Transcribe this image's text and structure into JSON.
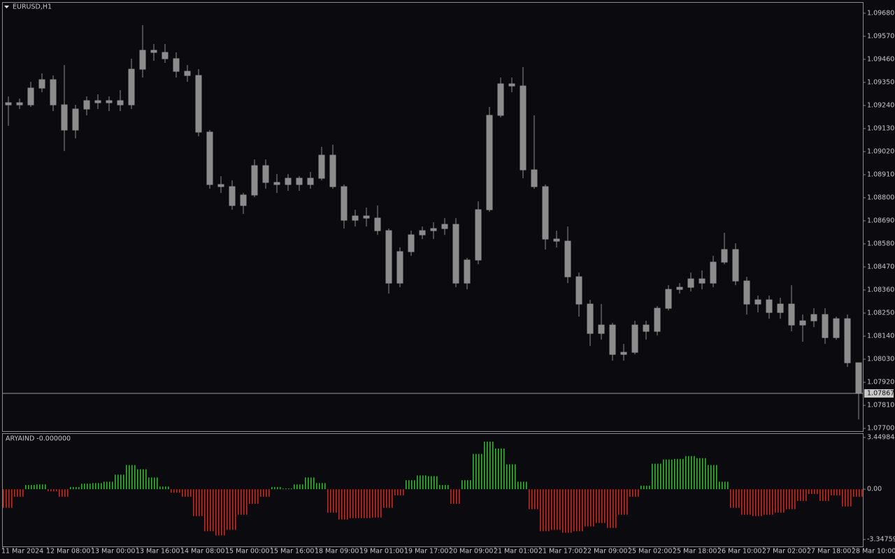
{
  "chart_data": [
    {
      "type": "candlestick",
      "title": "EURUSD,H1",
      "color": "#8c8c8c",
      "categories": [
        "11 Mar 2024",
        null,
        null,
        null,
        "12 Mar 08:00",
        null,
        null,
        null,
        "13 Mar 00:00",
        null,
        null,
        null,
        "13 Mar 16:00",
        null,
        null,
        null,
        "14 Mar 08:00",
        null,
        null,
        null,
        "15 Mar 00:00",
        null,
        null,
        null,
        "15 Mar 16:00",
        null,
        null,
        null,
        "18 Mar 09:00",
        null,
        null,
        null,
        "19 Mar 01:00",
        null,
        null,
        null,
        "19 Mar 17:00",
        null,
        null,
        null,
        "20 Mar 09:00",
        null,
        null,
        null,
        "21 Mar 01:00",
        null,
        null,
        null,
        "21 Mar 17:00",
        null,
        null,
        null,
        "22 Mar 09:00",
        null,
        null,
        null,
        "25 Mar 02:00",
        null,
        null,
        null,
        "25 Mar 18:00",
        null,
        null,
        null,
        "26 Mar 10:00",
        null,
        null,
        null,
        "27 Mar 02:00",
        null,
        null,
        null,
        "27 Mar 18:00",
        null,
        null,
        null,
        "28 Mar 10:00"
      ],
      "open": [
        1.09243,
        1.09253,
        1.09243,
        1.09323,
        1.09363,
        1.09243,
        1.09123,
        1.09223,
        1.09263,
        1.09253,
        1.09263,
        1.09243,
        1.09413,
        1.09503,
        1.09493,
        1.09463,
        1.09403,
        1.09383,
        1.09113,
        1.08863,
        1.08853,
        1.08763,
        1.08813,
        1.08953,
        1.08873,
        1.08863,
        1.08893,
        1.08863,
        1.08893,
        1.09003,
        1.08853,
        1.08693,
        1.08713,
        1.08703,
        1.08643,
        1.08393,
        1.08543,
        1.08623,
        1.08643,
        1.08653,
        1.08673,
        1.08393,
        1.08503,
        1.08743,
        1.09193,
        1.09343,
        1.09333,
        1.08933,
        1.08853,
        1.08603,
        1.08593,
        1.08423,
        1.08293,
        1.08153,
        1.08193,
        1.08053,
        1.08063,
        1.08193,
        1.08163,
        1.08273,
        1.08363,
        1.08373,
        1.08413,
        1.08393,
        1.08493,
        1.08553,
        1.08403,
        1.08293,
        1.08313,
        1.08253,
        1.08293,
        1.08193,
        1.08213,
        1.08243,
        1.08133,
        1.08223,
        1.08013
      ],
      "high": [
        1.09283,
        1.09273,
        1.09353,
        1.09393,
        1.09383,
        1.09433,
        1.09243,
        1.09283,
        1.09293,
        1.09283,
        1.09313,
        1.09463,
        1.09623,
        1.09533,
        1.09533,
        1.09493,
        1.09433,
        1.09413,
        1.09123,
        1.08903,
        1.08883,
        1.08823,
        1.08983,
        1.08983,
        1.08913,
        1.08913,
        1.08903,
        1.08923,
        1.09043,
        1.09053,
        1.08863,
        1.08743,
        1.08753,
        1.08763,
        1.08653,
        1.08563,
        1.08643,
        1.08663,
        1.08683,
        1.08703,
        1.08703,
        1.08513,
        1.08783,
        1.09233,
        1.09373,
        1.09373,
        1.09423,
        1.09193,
        1.08863,
        1.08643,
        1.08663,
        1.08443,
        1.08313,
        1.08293,
        1.08203,
        1.08103,
        1.08213,
        1.08213,
        1.08283,
        1.08383,
        1.08393,
        1.08443,
        1.08453,
        1.08523,
        1.08633,
        1.08583,
        1.08423,
        1.08333,
        1.08333,
        1.08323,
        1.08383,
        1.08243,
        1.08273,
        1.08273,
        1.08233,
        1.08243,
        1.08013
      ],
      "low": [
        1.09143,
        1.09223,
        1.09233,
        1.09303,
        1.09213,
        1.09023,
        1.09083,
        1.09193,
        1.09223,
        1.09213,
        1.09213,
        1.09223,
        1.09373,
        1.09453,
        1.09443,
        1.09373,
        1.09353,
        1.09093,
        1.08843,
        1.08823,
        1.08743,
        1.08723,
        1.08803,
        1.08843,
        1.08823,
        1.08833,
        1.08833,
        1.08843,
        1.08883,
        1.08843,
        1.08653,
        1.08663,
        1.08663,
        1.08623,
        1.08343,
        1.08373,
        1.08523,
        1.08603,
        1.08603,
        1.08623,
        1.08373,
        1.08363,
        1.08483,
        1.08733,
        1.09183,
        1.09303,
        1.08893,
        1.08843,
        1.08553,
        1.08563,
        1.08393,
        1.08233,
        1.08093,
        1.08123,
        1.08023,
        1.08023,
        1.08053,
        1.08123,
        1.08143,
        1.08263,
        1.08343,
        1.08353,
        1.08363,
        1.08373,
        1.08483,
        1.08383,
        1.08243,
        1.08253,
        1.08223,
        1.08223,
        1.08163,
        1.08113,
        1.08183,
        1.08103,
        1.08123,
        1.07993,
        1.07743
      ],
      "close": [
        1.09253,
        1.09243,
        1.09323,
        1.09363,
        1.09243,
        1.09123,
        1.09223,
        1.09263,
        1.09253,
        1.09263,
        1.09243,
        1.09413,
        1.09503,
        1.09493,
        1.09463,
        1.09403,
        1.09383,
        1.09113,
        1.08863,
        1.08853,
        1.08763,
        1.08813,
        1.08953,
        1.08873,
        1.08863,
        1.08893,
        1.08863,
        1.08893,
        1.09003,
        1.08853,
        1.08693,
        1.08713,
        1.08703,
        1.08643,
        1.08393,
        1.08543,
        1.08623,
        1.08643,
        1.08653,
        1.08673,
        1.08393,
        1.08503,
        1.08743,
        1.09193,
        1.09343,
        1.09333,
        1.08933,
        1.08853,
        1.08603,
        1.08593,
        1.08423,
        1.08293,
        1.08153,
        1.08193,
        1.08053,
        1.08063,
        1.08193,
        1.08163,
        1.08273,
        1.08363,
        1.08373,
        1.08413,
        1.08393,
        1.08493,
        1.08553,
        1.08403,
        1.08293,
        1.08313,
        1.08253,
        1.08293,
        1.08193,
        1.08213,
        1.08243,
        1.08133,
        1.08223,
        1.08013,
        1.07867
      ],
      "current_price": 1.07867,
      "ylim": [
        1.07687,
        1.09733
      ],
      "yticks": [
        {
          "value": 1.0968,
          "label": "1.09680"
        },
        {
          "value": 1.0957,
          "label": "1.09570"
        },
        {
          "value": 1.0946,
          "label": "1.09460"
        },
        {
          "value": 1.0935,
          "label": "1.09350"
        },
        {
          "value": 1.0924,
          "label": "1.09240"
        },
        {
          "value": 1.0913,
          "label": "1.09130"
        },
        {
          "value": 1.0902,
          "label": "1.09020"
        },
        {
          "value": 1.0891,
          "label": "1.08910"
        },
        {
          "value": 1.088,
          "label": "1.08800"
        },
        {
          "value": 1.0869,
          "label": "1.08690"
        },
        {
          "value": 1.0858,
          "label": "1.08580"
        },
        {
          "value": 1.0847,
          "label": "1.08470"
        },
        {
          "value": 1.0836,
          "label": "1.08360"
        },
        {
          "value": 1.0825,
          "label": "1.08250"
        },
        {
          "value": 1.0814,
          "label": "1.08140"
        },
        {
          "value": 1.0803,
          "label": "1.08030"
        },
        {
          "value": 1.0792,
          "label": "1.07920"
        },
        {
          "value": 1.0781,
          "label": "1.07810"
        },
        {
          "value": 1.077,
          "label": "1.07700"
        }
      ]
    },
    {
      "type": "bar",
      "title": "ARYAIND -0.000000",
      "positive_color": "#2fb52f",
      "negative_color": "#c8281e",
      "values": [
        -1.24,
        -0.5,
        0.28,
        0.32,
        -0.14,
        -0.5,
        0.14,
        0.37,
        0.41,
        0.5,
        0.97,
        1.61,
        1.33,
        0.78,
        0.18,
        -0.23,
        -0.5,
        -1.79,
        -2.8,
        -3.08,
        -2.71,
        -1.7,
        -0.97,
        -0.5,
        0.14,
        0.05,
        0.32,
        0.78,
        0.41,
        -1.56,
        -2.02,
        -1.93,
        -1.93,
        -1.89,
        -1.24,
        -0.41,
        0.6,
        0.92,
        0.87,
        0.28,
        -0.97,
        0.6,
        2.35,
        3.17,
        2.71,
        1.66,
        0.5,
        -1.33,
        -2.8,
        -2.71,
        -2.9,
        -2.8,
        -2.48,
        -2.25,
        -2.58,
        -1.7,
        -0.5,
        0.23,
        1.7,
        1.98,
        2.02,
        2.21,
        2.07,
        1.61,
        0.5,
        -1.24,
        -1.7,
        -1.79,
        -1.7,
        -1.56,
        -1.33,
        -0.78,
        -0.32,
        -0.78,
        -0.41,
        -1.15,
        -0.5
      ],
      "ylim": [
        -3.81,
        3.73
      ],
      "yticks": [
        3.449844,
        {
          "value": 0,
          "label": "0.00"
        },
        -3.347594
      ]
    }
  ]
}
